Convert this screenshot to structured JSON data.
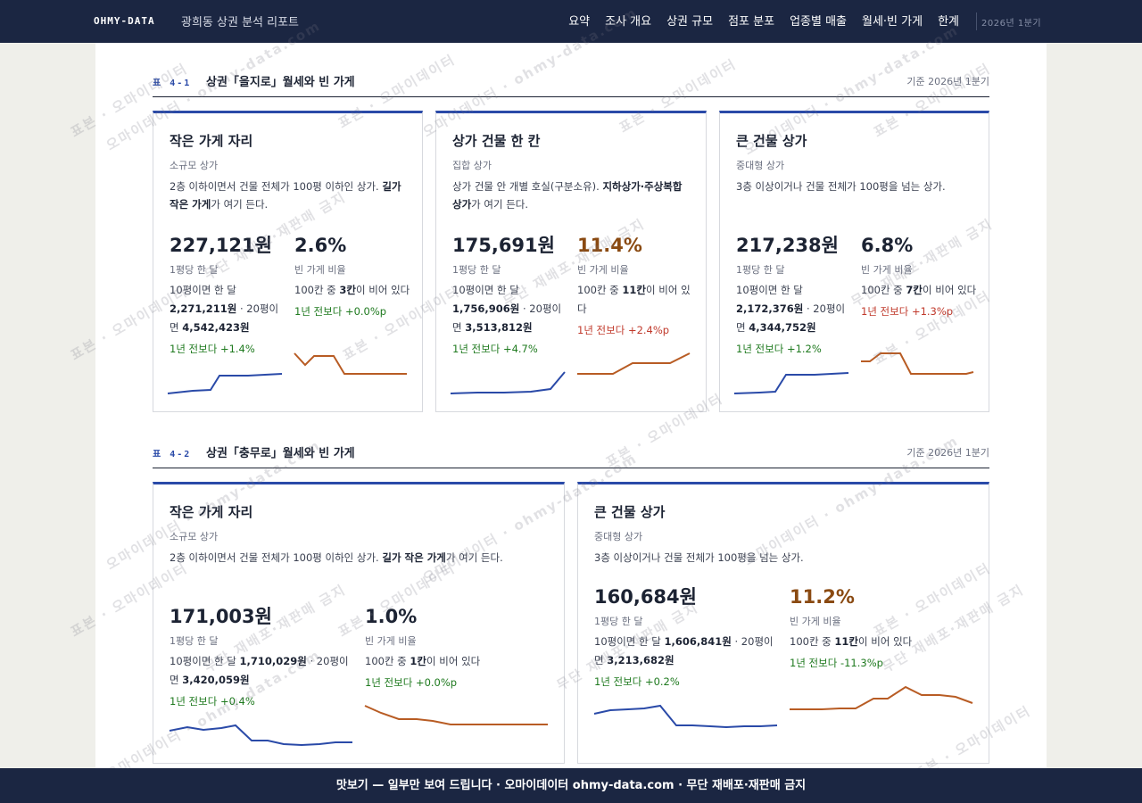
{
  "header": {
    "brand": "OHMY-DATA",
    "report_title": "광희동 상권 분석 리포트",
    "nav": [
      "요약",
      "조사 개요",
      "상권 규모",
      "점포 분포",
      "업종별 매출",
      "월세·빈 가게",
      "한계"
    ],
    "period": "2026년 1분기"
  },
  "sections": [
    {
      "num": "표 4-1",
      "title": "상권「을지로」월세와 빈 가게",
      "date": "기준 2026년 1분기",
      "cards": [
        {
          "title": "작은 가게 자리",
          "subtitle": "소규모 상가",
          "desc": [
            "2층 이하이면서 건물 전체가 100평 이하인 상가. ",
            "길가 작은 가게",
            "가 여기 든다."
          ],
          "rent": {
            "value": "227,121원",
            "label": "1평당 한 달",
            "note": [
              "10평이면 한 달 ",
              "2,271,211원",
              " · 20평이면 ",
              "4,542,423원"
            ],
            "change": "1년 전보다 +1.4%"
          },
          "vacancy": {
            "value": "2.6%",
            "label": "빈 가게 비율",
            "note": [
              "100칸 중 ",
              "3칸",
              "이 비어 있다"
            ],
            "change": "1년 전보다 +0.0%p"
          }
        },
        {
          "title": "상가 건물 한 칸",
          "subtitle": "집합 상가",
          "desc": [
            "상가 건물 안 개별 호실(구분소유). ",
            "지하상가·주상복합 상가",
            "가 여기 든다."
          ],
          "rent": {
            "value": "175,691원",
            "label": "1평당 한 달",
            "note": [
              "10평이면 한 달 ",
              "1,756,906원",
              " · 20평이면 ",
              "3,513,812원"
            ],
            "change": "1년 전보다 +4.7%"
          },
          "vacancy": {
            "value": "11.4%",
            "label": "빈 가게 비율",
            "note": [
              "100칸 중 ",
              "11칸",
              "이 비어 있다"
            ],
            "change": "1년 전보다 +2.4%p"
          }
        },
        {
          "title": "큰 건물 상가",
          "subtitle": "중대형 상가",
          "desc": [
            "3층 이상이거나 건물 전체가 100평을 넘는 상가.",
            "",
            ""
          ],
          "rent": {
            "value": "217,238원",
            "label": "1평당 한 달",
            "note": [
              "10평이면 한 달 ",
              "2,172,376원",
              " · 20평이면 ",
              "4,344,752원"
            ],
            "change": "1년 전보다 +1.2%"
          },
          "vacancy": {
            "value": "6.8%",
            "label": "빈 가게 비율",
            "note": [
              "100칸 중 ",
              "7칸",
              "이 비어 있다"
            ],
            "change": "1년 전보다 +1.3%p"
          }
        }
      ]
    },
    {
      "num": "표 4-2",
      "title": "상권「충무로」월세와 빈 가게",
      "date": "기준 2026년 1분기",
      "cards": [
        {
          "title": "작은 가게 자리",
          "subtitle": "소규모 상가",
          "desc": [
            "2층 이하이면서 건물 전체가 100평 이하인 상가. ",
            "길가 작은 가게",
            "가 여기 든다."
          ],
          "rent": {
            "value": "171,003원",
            "label": "1평당 한 달",
            "note": [
              "10평이면 한 달 ",
              "1,710,029원",
              " · 20평이면 ",
              "3,420,059원"
            ],
            "change": "1년 전보다 +0.4%"
          },
          "vacancy": {
            "value": "1.0%",
            "label": "빈 가게 비율",
            "note": [
              "100칸 중 ",
              "1칸",
              "이 비어 있다"
            ],
            "change": "1년 전보다 +0.0%p"
          }
        },
        {
          "title": "큰 건물 상가",
          "subtitle": "중대형 상가",
          "desc": [
            "3층 이상이거나 건물 전체가 100평을 넘는 상가.",
            "",
            ""
          ],
          "rent": {
            "value": "160,684원",
            "label": "1평당 한 달",
            "note": [
              "10평이면 한 달 ",
              "1,606,841원",
              " · 20평이면 ",
              "3,213,682원"
            ],
            "change": "1년 전보다 +0.2%"
          },
          "vacancy": {
            "value": "11.2%",
            "label": "빈 가게 비율",
            "note": [
              "100칸 중 ",
              "11칸",
              "이 비어 있다"
            ],
            "change": "1년 전보다 -11.3%p"
          }
        }
      ]
    }
  ],
  "colors": {
    "navy": "#1b2642",
    "accent_blue": "#2a4aa8",
    "vacancy_line": "#b85c24",
    "vacancy_alert": "#8a4a12",
    "positive": "#1f7a1f",
    "negative": "#c0392b"
  },
  "watermark": [
    "표본 · 오마이데이터",
    "오마이데이터 · ohmy-data.com",
    "무단 재배포·재판매 금지"
  ],
  "footer": "맛보기 — 일부만 보여 드립니다 · 오마이데이터 ohmy-data.com · 무단 재배포·재판매 금지"
}
